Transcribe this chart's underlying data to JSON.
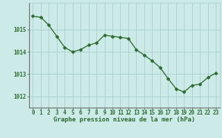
{
  "x": [
    0,
    1,
    2,
    3,
    4,
    5,
    6,
    7,
    8,
    9,
    10,
    11,
    12,
    13,
    14,
    15,
    16,
    17,
    18,
    19,
    20,
    21,
    22,
    23
  ],
  "y": [
    1015.6,
    1015.55,
    1015.2,
    1014.7,
    1014.2,
    1014.0,
    1014.1,
    1014.3,
    1014.4,
    1014.75,
    1014.7,
    1014.65,
    1014.6,
    1014.1,
    1013.85,
    1013.6,
    1013.3,
    1012.8,
    1012.35,
    1012.2,
    1012.5,
    1012.55,
    1012.85,
    1013.05
  ],
  "line_color": "#2d6a2d",
  "marker": "D",
  "markersize": 2.5,
  "linewidth": 1.0,
  "bg_color": "#cceae7",
  "grid_color": "#aacccc",
  "xlabel": "Graphe pression niveau de la mer (hPa)",
  "xlabel_color": "#2d6a2d",
  "xlabel_fontsize": 6.5,
  "tick_color": "#2d6a2d",
  "tick_fontsize": 5.5,
  "ylim": [
    1011.5,
    1016.2
  ],
  "xlim": [
    -0.5,
    23.5
  ],
  "yticks": [
    1012,
    1013,
    1014,
    1015
  ],
  "xticks": [
    0,
    1,
    2,
    3,
    4,
    5,
    6,
    7,
    8,
    9,
    10,
    11,
    12,
    13,
    14,
    15,
    16,
    17,
    18,
    19,
    20,
    21,
    22,
    23
  ]
}
